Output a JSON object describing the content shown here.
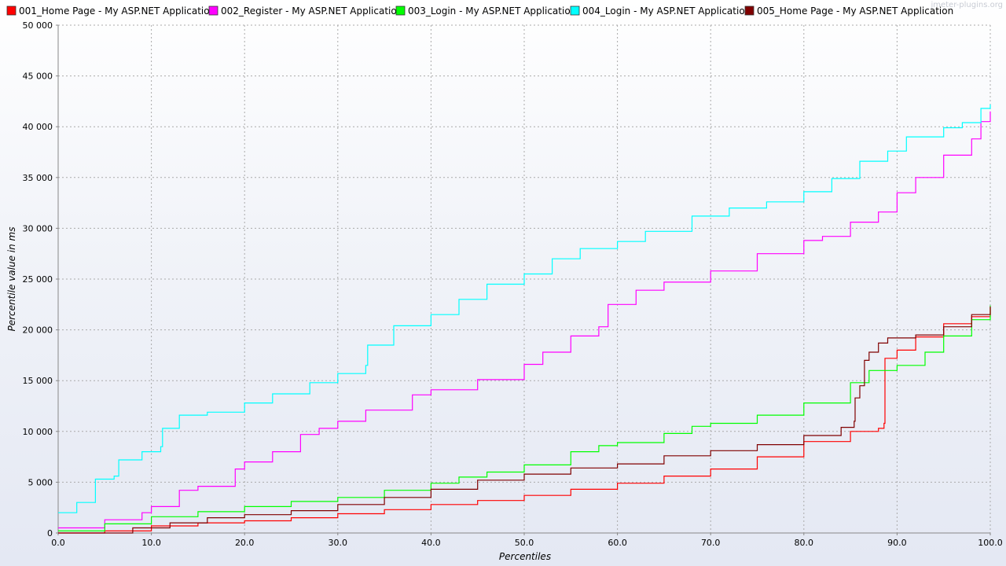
{
  "watermark": "jmeter-plugins.org",
  "chart_data": {
    "type": "line",
    "xlabel": "Percentiles",
    "ylabel": "Percentile value in ms",
    "xlim": [
      0,
      100
    ],
    "ylim": [
      0,
      50000
    ],
    "xticks": [
      "0.0",
      "10.0",
      "20.0",
      "30.0",
      "40.0",
      "50.0",
      "60.0",
      "70.0",
      "80.0",
      "90.0",
      "100.0"
    ],
    "yticks": [
      "0",
      "5 000",
      "10 000",
      "15 000",
      "20 000",
      "25 000",
      "30 000",
      "35 000",
      "40 000",
      "45 000",
      "50 000"
    ],
    "grid": true,
    "legend_position": "top",
    "series": [
      {
        "name": "001_Home Page - My ASP.NET Application",
        "color": "#ff0000",
        "points": [
          [
            0,
            0
          ],
          [
            5,
            200
          ],
          [
            10,
            700
          ],
          [
            15,
            1000
          ],
          [
            20,
            1200
          ],
          [
            25,
            1500
          ],
          [
            30,
            1900
          ],
          [
            35,
            2300
          ],
          [
            40,
            2800
          ],
          [
            45,
            3200
          ],
          [
            50,
            3700
          ],
          [
            55,
            4300
          ],
          [
            60,
            4900
          ],
          [
            65,
            5600
          ],
          [
            70,
            6300
          ],
          [
            75,
            7500
          ],
          [
            80,
            9000
          ],
          [
            85,
            10000
          ],
          [
            88,
            10300
          ],
          [
            88.6,
            10800
          ],
          [
            88.7,
            17200
          ],
          [
            90,
            18000
          ],
          [
            92,
            19300
          ],
          [
            95,
            20600
          ],
          [
            98,
            21300
          ],
          [
            100,
            22200
          ]
        ]
      },
      {
        "name": "002_Register - My ASP.NET Application",
        "color": "#ff00ff",
        "points": [
          [
            0,
            500
          ],
          [
            5,
            1300
          ],
          [
            9,
            2000
          ],
          [
            10,
            2600
          ],
          [
            13,
            4200
          ],
          [
            15,
            4600
          ],
          [
            19,
            6300
          ],
          [
            20,
            7000
          ],
          [
            23,
            8000
          ],
          [
            26,
            9700
          ],
          [
            28,
            10300
          ],
          [
            30,
            11000
          ],
          [
            33,
            12100
          ],
          [
            38,
            13600
          ],
          [
            40,
            14100
          ],
          [
            45,
            15100
          ],
          [
            50,
            16600
          ],
          [
            52,
            17800
          ],
          [
            55,
            19400
          ],
          [
            58,
            20300
          ],
          [
            59,
            22500
          ],
          [
            62,
            23900
          ],
          [
            65,
            24700
          ],
          [
            70,
            25800
          ],
          [
            75,
            27500
          ],
          [
            80,
            28800
          ],
          [
            82,
            29200
          ],
          [
            85,
            30600
          ],
          [
            88,
            31600
          ],
          [
            90,
            33500
          ],
          [
            92,
            35000
          ],
          [
            95,
            37200
          ],
          [
            98,
            38800
          ],
          [
            99,
            40500
          ],
          [
            100,
            41500
          ]
        ]
      },
      {
        "name": "003_Login - My ASP.NET Application",
        "color": "#00ff00",
        "points": [
          [
            0,
            200
          ],
          [
            5,
            900
          ],
          [
            10,
            1600
          ],
          [
            15,
            2100
          ],
          [
            20,
            2600
          ],
          [
            25,
            3100
          ],
          [
            30,
            3500
          ],
          [
            35,
            4200
          ],
          [
            40,
            4900
          ],
          [
            43,
            5500
          ],
          [
            46,
            6000
          ],
          [
            50,
            6700
          ],
          [
            55,
            8000
          ],
          [
            58,
            8600
          ],
          [
            60,
            8900
          ],
          [
            65,
            9800
          ],
          [
            68,
            10500
          ],
          [
            70,
            10800
          ],
          [
            75,
            11600
          ],
          [
            80,
            12800
          ],
          [
            85,
            14800
          ],
          [
            87,
            16000
          ],
          [
            90,
            16500
          ],
          [
            93,
            17800
          ],
          [
            95,
            19400
          ],
          [
            98,
            21000
          ],
          [
            100,
            22400
          ]
        ]
      },
      {
        "name": "004_Login - My ASP.NET Application",
        "color": "#00ffff",
        "points": [
          [
            0,
            2000
          ],
          [
            2,
            3000
          ],
          [
            4,
            5300
          ],
          [
            6,
            5600
          ],
          [
            6.5,
            7200
          ],
          [
            9,
            8000
          ],
          [
            11,
            8500
          ],
          [
            11.2,
            10300
          ],
          [
            13,
            11600
          ],
          [
            16,
            11900
          ],
          [
            20,
            12800
          ],
          [
            23,
            13700
          ],
          [
            27,
            14800
          ],
          [
            30,
            15700
          ],
          [
            33,
            16500
          ],
          [
            33.2,
            18500
          ],
          [
            36,
            20400
          ],
          [
            40,
            21500
          ],
          [
            43,
            23000
          ],
          [
            46,
            24500
          ],
          [
            50,
            25500
          ],
          [
            53,
            27000
          ],
          [
            56,
            28000
          ],
          [
            60,
            28700
          ],
          [
            63,
            29700
          ],
          [
            68,
            31200
          ],
          [
            72,
            32000
          ],
          [
            76,
            32600
          ],
          [
            80,
            33600
          ],
          [
            83,
            34900
          ],
          [
            86,
            36600
          ],
          [
            89,
            37600
          ],
          [
            91,
            39000
          ],
          [
            95,
            39900
          ],
          [
            97,
            40400
          ],
          [
            99,
            41800
          ],
          [
            100,
            42200
          ]
        ]
      },
      {
        "name": "005_Home Page - My ASP.NET Application",
        "color": "#800000",
        "points": [
          [
            0,
            0
          ],
          [
            5,
            0
          ],
          [
            8,
            500
          ],
          [
            12,
            1000
          ],
          [
            16,
            1500
          ],
          [
            20,
            1800
          ],
          [
            25,
            2200
          ],
          [
            30,
            2800
          ],
          [
            35,
            3500
          ],
          [
            40,
            4300
          ],
          [
            45,
            5200
          ],
          [
            50,
            5800
          ],
          [
            55,
            6400
          ],
          [
            60,
            6800
          ],
          [
            65,
            7600
          ],
          [
            70,
            8100
          ],
          [
            75,
            8700
          ],
          [
            80,
            9600
          ],
          [
            84,
            10400
          ],
          [
            85.4,
            11000
          ],
          [
            85.5,
            13300
          ],
          [
            86,
            14500
          ],
          [
            86.5,
            17000
          ],
          [
            87,
            17800
          ],
          [
            88,
            18700
          ],
          [
            89,
            19200
          ],
          [
            92,
            19500
          ],
          [
            95,
            20300
          ],
          [
            98,
            21500
          ],
          [
            100,
            22300
          ]
        ]
      }
    ]
  }
}
